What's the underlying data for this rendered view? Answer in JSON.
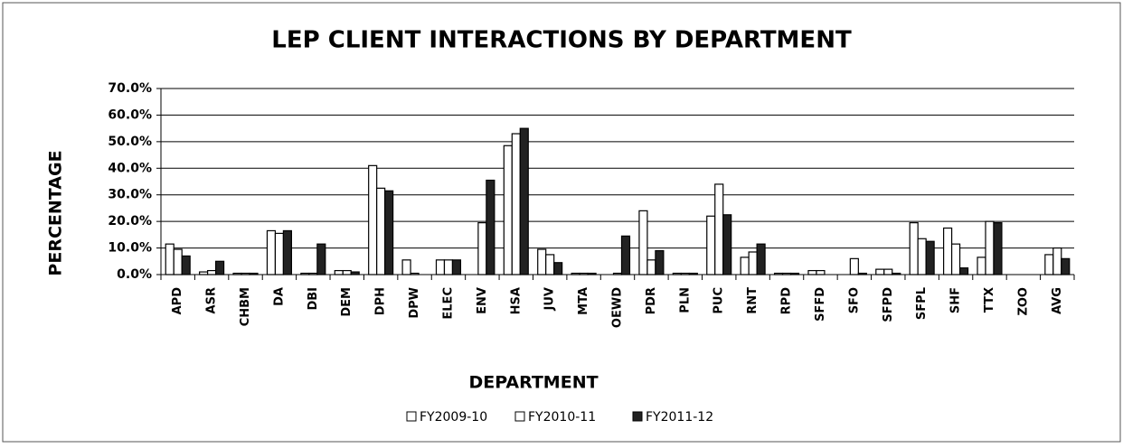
{
  "chart_data": {
    "type": "bar",
    "title": "LEP CLIENT INTERACTIONS BY DEPARTMENT",
    "y_label": "PERCENTAGE",
    "x_label": "DEPARTMENT",
    "categories": [
      "APD",
      "ASR",
      "CHBM",
      "DA",
      "DBI",
      "DEM",
      "DPH",
      "DPW",
      "ELEC",
      "ENV",
      "HSA",
      "JUV",
      "MTA",
      "OEWD",
      "PDR",
      "PLN",
      "PUC",
      "RNT",
      "RPD",
      "SFFD",
      "SFO",
      "SFPD",
      "SFPL",
      "SHF",
      "TTX",
      "ZOO",
      "AVG"
    ],
    "series": [
      {
        "name": "FY2009-10",
        "color": "#ffffff",
        "values": [
          11.5,
          1,
          0.5,
          16.5,
          0.5,
          1.5,
          41,
          5.5,
          5.5,
          0,
          48.5,
          9.5,
          0.5,
          0,
          24,
          0.5,
          22,
          6.5,
          0.5,
          1.5,
          0,
          2,
          19.5,
          17.5,
          6.5,
          0,
          7.5
        ]
      },
      {
        "name": "FY2010-11",
        "color": "#ffffff",
        "values": [
          9.5,
          1.5,
          0.5,
          15.5,
          0.5,
          1.5,
          32.5,
          0.5,
          5.5,
          19.5,
          53,
          7.5,
          0.5,
          0.5,
          5.5,
          0.5,
          34,
          8.5,
          0.5,
          1.5,
          6,
          2,
          13.5,
          11.5,
          20,
          0,
          10
        ]
      },
      {
        "name": "FY2011-12",
        "color": "#222222",
        "values": [
          7,
          5,
          0.5,
          16.5,
          11.5,
          1,
          31.5,
          0,
          5.5,
          35.5,
          55,
          4.5,
          0.5,
          14.5,
          9,
          0.5,
          22.5,
          11.5,
          0.5,
          0,
          0.5,
          0.5,
          12.5,
          2.5,
          19.5,
          0,
          6
        ]
      }
    ],
    "ylim": [
      0,
      70
    ],
    "yticks": [
      {
        "value": 0,
        "label": "0.0%"
      },
      {
        "value": 10,
        "label": "10.0%"
      },
      {
        "value": 20,
        "label": "20.0%"
      },
      {
        "value": 30,
        "label": "30.0%"
      },
      {
        "value": 40,
        "label": "40.0%"
      },
      {
        "value": 50,
        "label": "50.0%"
      },
      {
        "value": 60,
        "label": "60.0%"
      },
      {
        "value": 70,
        "label": "70.0%"
      }
    ],
    "grid": true,
    "legend": "bottom"
  }
}
